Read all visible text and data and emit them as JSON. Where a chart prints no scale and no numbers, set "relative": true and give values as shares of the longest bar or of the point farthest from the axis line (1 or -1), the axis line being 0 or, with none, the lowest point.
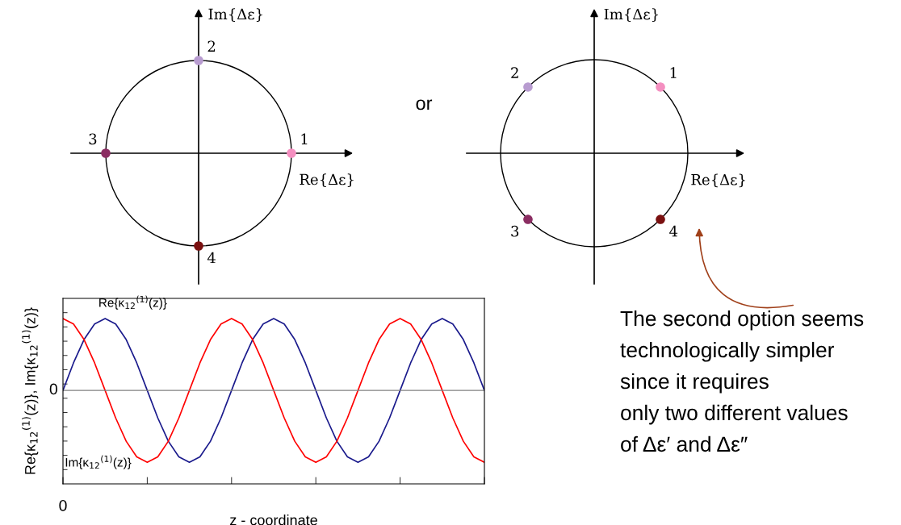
{
  "chart_data": [
    {
      "type": "other",
      "xlabel": "Re{Δε}",
      "ylabel": "Im{Δε}",
      "annotations": [
        "1",
        "2",
        "3",
        "4"
      ]
    },
    {
      "type": "other",
      "xlabel": "Re{Δε}",
      "ylabel": "Im{Δε}",
      "annotations": [
        "1",
        "2",
        "3",
        "4",
        "or"
      ]
    },
    {
      "type": "line",
      "relative": true,
      "xlabel": "z - coordinate",
      "ylabel": "Re{κ$_{12}$$^{(1)}$(z)}, Im{κ$_{12}$$^{(1)}$(z)}",
      "annotations": [
        "0"
      ],
      "categories": [
        null,
        null,
        null,
        null,
        null,
        null,
        null,
        null,
        null,
        null,
        null,
        null,
        null,
        null,
        null,
        null,
        null,
        null,
        null,
        null,
        null,
        null,
        null,
        null,
        null,
        null,
        null,
        null,
        null,
        null,
        null,
        null,
        null,
        null,
        null,
        null,
        null,
        null,
        null,
        null,
        null
      ],
      "series": [
        {
          "name": "Re{κ$_{12}$$^{(1)}$(z)}",
          "color": "#1a1a8c",
          "values": [
            0,
            0.383,
            0.707,
            0.924,
            1,
            0.924,
            0.707,
            0.383,
            0,
            -0.383,
            -0.707,
            -0.924,
            -1,
            -0.924,
            -0.707,
            -0.383,
            0,
            0.383,
            0.707,
            0.924,
            1,
            0.924,
            0.707,
            0.383,
            0,
            -0.383,
            -0.707,
            -0.924,
            -1,
            -0.924,
            -0.707,
            -0.383,
            0,
            0.383,
            0.707,
            0.924,
            1,
            0.924,
            0.707,
            0.383,
            0
          ]
        },
        {
          "name": "Im{κ$_{12}$$^{(1)}$(z)}",
          "color": "#ff0000",
          "values": [
            1,
            0.924,
            0.707,
            0.383,
            0,
            -0.383,
            -0.707,
            -0.924,
            -1,
            -0.924,
            -0.707,
            -0.383,
            0,
            0.383,
            0.707,
            0.924,
            1,
            0.924,
            0.707,
            0.383,
            0,
            -0.383,
            -0.707,
            -0.924,
            -1,
            -0.924,
            -0.707,
            -0.383,
            0,
            0.383,
            0.707,
            0.924,
            1,
            0.924,
            0.707,
            0.383,
            0,
            -0.383,
            -0.707,
            -0.924,
            -1
          ]
        }
      ],
      "ref_lines": [
        {
          "axis": "y",
          "value": 0,
          "label": "0",
          "color": "#808080"
        }
      ],
      "marker": "none",
      "line_style": "solid"
    },
    {
      "type": "other",
      "annotations": [
        "The second option seems\ntechnologically simpler\nsince it requires\nonly two different values\nof Δε′ and Δε″"
      ]
    }
  ]
}
